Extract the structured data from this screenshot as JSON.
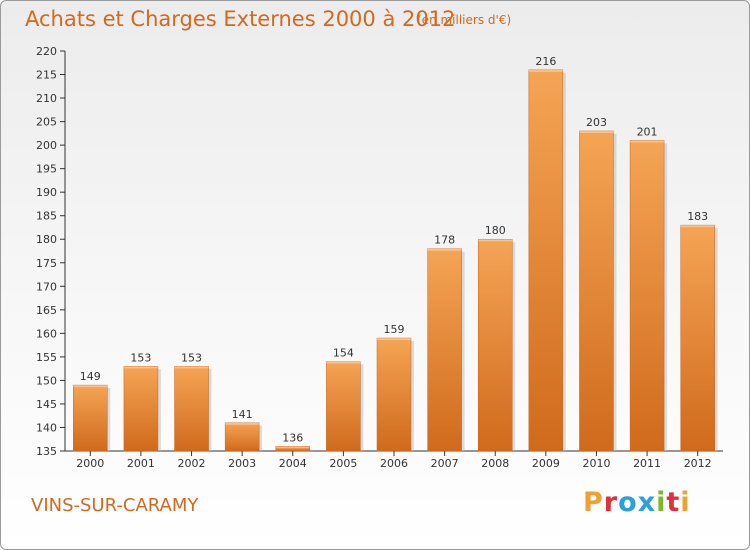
{
  "header": {
    "title": "Achats et Charges Externes 2000 à 2012",
    "unit": "(en milliers d'€)"
  },
  "footer": {
    "commune": "VINS-SUR-CARAMY",
    "logo_text": "Proxiti",
    "logo_letters": [
      {
        "ch": "P",
        "color": "#f0a030"
      },
      {
        "ch": "r",
        "color": "#e0303a"
      },
      {
        "ch": "o",
        "color": "#2aa0dc"
      },
      {
        "ch": "x",
        "color": "#2aa0dc"
      },
      {
        "ch": "i",
        "color": "#7ab830"
      },
      {
        "ch": "t",
        "color": "#e0303a"
      },
      {
        "ch": "i",
        "color": "#f0a030"
      }
    ]
  },
  "colors": {
    "title": "#d2691e",
    "bar_light": "#f5a455",
    "bar_dark": "#d06a1c",
    "axis": "#333333",
    "grid": "#cccccc"
  },
  "chart_data": {
    "type": "bar",
    "categories": [
      "2000",
      "2001",
      "2002",
      "2003",
      "2004",
      "2005",
      "2006",
      "2007",
      "2008",
      "2009",
      "2010",
      "2011",
      "2012"
    ],
    "values": [
      149,
      153,
      153,
      141,
      136,
      154,
      159,
      178,
      180,
      216,
      203,
      201,
      183
    ],
    "ylim": [
      135,
      220
    ],
    "yticks": [
      135,
      140,
      145,
      150,
      155,
      160,
      165,
      170,
      175,
      180,
      185,
      190,
      195,
      200,
      205,
      210,
      215,
      220
    ],
    "grid": false,
    "data_labels": true
  }
}
